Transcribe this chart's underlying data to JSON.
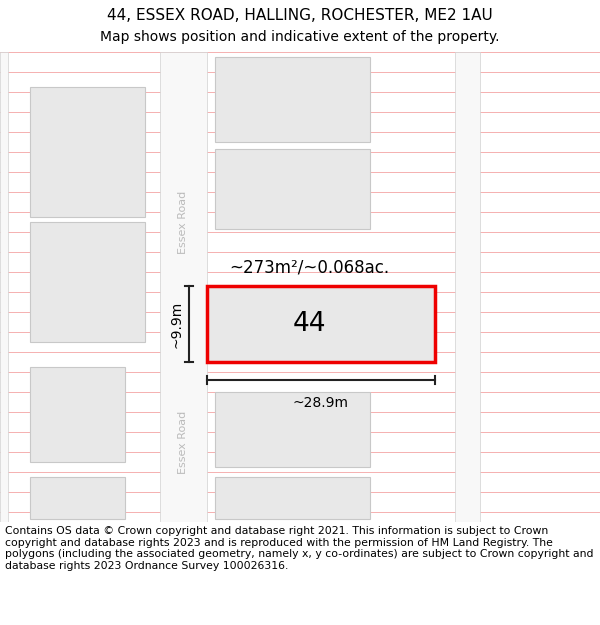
{
  "title": "44, ESSEX ROAD, HALLING, ROCHESTER, ME2 1AU",
  "subtitle": "Map shows position and indicative extent of the property.",
  "footer": "Contains OS data © Crown copyright and database right 2021. This information is subject to Crown copyright and database rights 2023 and is reproduced with the permission of HM Land Registry. The polygons (including the associated geometry, namely x, y co-ordinates) are subject to Crown copyright and database rights 2023 Ordnance Survey 100026316.",
  "hatch_line_color": "#f5b0b0",
  "building_fill": "#e8e8e8",
  "building_edge": "#c8c8c8",
  "highlight_fill": "#e8e8e8",
  "highlight_edge": "#ee0000",
  "road_fill": "#f8f8f8",
  "road_edge": "#d0d0d0",
  "label_44": "44",
  "area_label": "~273m²/~0.068ac.",
  "width_label": "~28.9m",
  "height_label": "~9.9m",
  "road_label": "Essex Road",
  "title_fontsize": 11,
  "subtitle_fontsize": 10,
  "footer_fontsize": 7.8,
  "dim_color": "#222222",
  "road_text_color": "#bbbbbb"
}
